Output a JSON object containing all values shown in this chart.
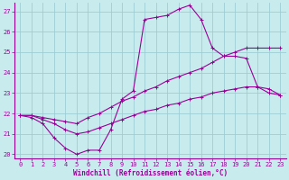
{
  "xlabel": "Windchill (Refroidissement éolien,°C)",
  "bg_color": "#c8ecee",
  "grid_color": "#9ecdd4",
  "line_color": "#990099",
  "xlim": [
    -0.5,
    23.5
  ],
  "ylim": [
    19.8,
    27.4
  ],
  "yticks": [
    20,
    21,
    22,
    23,
    24,
    25,
    26,
    27
  ],
  "xticks": [
    0,
    1,
    2,
    3,
    4,
    5,
    6,
    7,
    8,
    9,
    10,
    11,
    12,
    13,
    14,
    15,
    16,
    17,
    18,
    19,
    20,
    21,
    22,
    23
  ],
  "line1_x": [
    0,
    1,
    2,
    3,
    4,
    5,
    6,
    7,
    8,
    9,
    10,
    11,
    12,
    13,
    14,
    15,
    16,
    17,
    18,
    19,
    20,
    21,
    22,
    23
  ],
  "line1_y": [
    21.9,
    21.8,
    21.5,
    20.8,
    20.3,
    20.0,
    20.2,
    20.2,
    21.2,
    22.7,
    23.1,
    26.6,
    26.7,
    26.8,
    27.1,
    27.3,
    26.6,
    25.2,
    24.8,
    24.8,
    24.7,
    23.3,
    23.0,
    22.9
  ],
  "line2_x": [
    0,
    1,
    2,
    3,
    4,
    5,
    6,
    7,
    8,
    9,
    10,
    11,
    12,
    13,
    14,
    15,
    16,
    17,
    18,
    19,
    20,
    21,
    22,
    23
  ],
  "line2_y": [
    21.9,
    21.9,
    21.8,
    21.7,
    21.6,
    21.5,
    21.8,
    22.0,
    22.3,
    22.6,
    22.8,
    23.1,
    23.3,
    23.6,
    23.8,
    24.0,
    24.2,
    24.5,
    24.8,
    25.0,
    25.2,
    25.2,
    25.2,
    25.2
  ],
  "line3_x": [
    0,
    1,
    2,
    3,
    4,
    5,
    6,
    7,
    8,
    9,
    10,
    11,
    12,
    13,
    14,
    15,
    16,
    17,
    18,
    19,
    20,
    21,
    22,
    23
  ],
  "line3_y": [
    21.9,
    21.9,
    21.7,
    21.5,
    21.2,
    21.0,
    21.1,
    21.3,
    21.5,
    21.7,
    21.9,
    22.1,
    22.2,
    22.4,
    22.5,
    22.7,
    22.8,
    23.0,
    23.1,
    23.2,
    23.3,
    23.3,
    23.2,
    22.9
  ]
}
